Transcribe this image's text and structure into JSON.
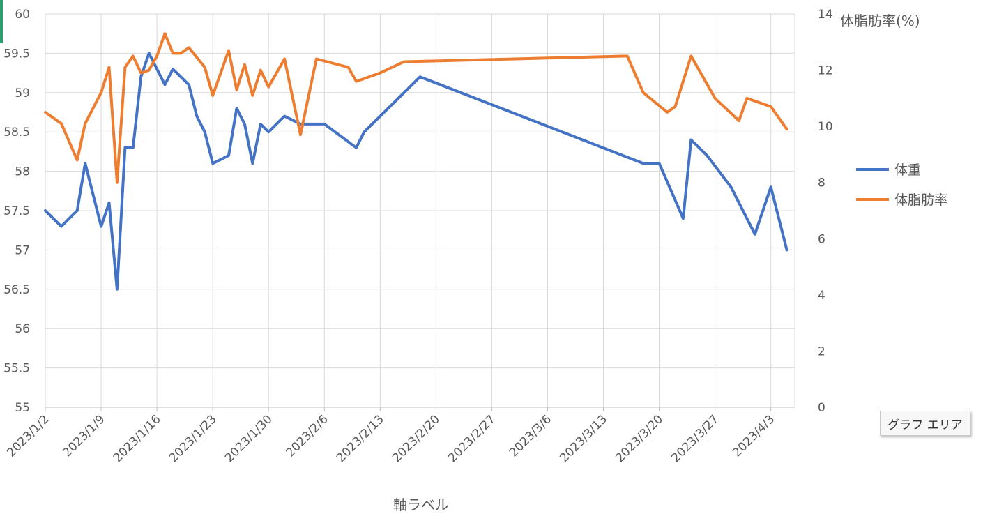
{
  "chart_data": {
    "type": "line",
    "xlabel": "軸ラベル",
    "ylabel": "",
    "y2label": "体脂肪率(%)",
    "ylim": [
      55,
      60
    ],
    "y2lim": [
      0,
      14
    ],
    "y_ticks": [
      "60",
      "59.5",
      "59",
      "58.5",
      "58",
      "57.5",
      "57",
      "56.5",
      "56",
      "55.5",
      "55"
    ],
    "y2_ticks": [
      "14",
      "12",
      "10",
      "8",
      "6",
      "4",
      "2",
      "0"
    ],
    "x_ticks": [
      "2023/1/2",
      "2023/1/9",
      "2023/1/16",
      "2023/1/23",
      "2023/1/30",
      "2023/2/6",
      "2023/2/13",
      "2023/2/20",
      "2023/2/27",
      "2023/3/6",
      "2023/3/13",
      "2023/3/20",
      "2023/3/27",
      "2023/4/3"
    ],
    "grid": true,
    "legend": "right",
    "series": [
      {
        "name": "体重",
        "axis": "left",
        "color": "#4472c4",
        "points": [
          [
            "2023/1/2",
            57.5
          ],
          [
            "2023/1/4",
            57.3
          ],
          [
            "2023/1/6",
            57.5
          ],
          [
            "2023/1/7",
            58.1
          ],
          [
            "2023/1/9",
            57.3
          ],
          [
            "2023/1/10",
            57.6
          ],
          [
            "2023/1/11",
            56.5
          ],
          [
            "2023/1/12",
            58.3
          ],
          [
            "2023/1/13",
            58.3
          ],
          [
            "2023/1/14",
            59.2
          ],
          [
            "2023/1/15",
            59.5
          ],
          [
            "2023/1/17",
            59.1
          ],
          [
            "2023/1/18",
            59.3
          ],
          [
            "2023/1/20",
            59.1
          ],
          [
            "2023/1/21",
            58.7
          ],
          [
            "2023/1/22",
            58.5
          ],
          [
            "2023/1/23",
            58.1
          ],
          [
            "2023/1/25",
            58.2
          ],
          [
            "2023/1/26",
            58.8
          ],
          [
            "2023/1/27",
            58.6
          ],
          [
            "2023/1/28",
            58.1
          ],
          [
            "2023/1/29",
            58.6
          ],
          [
            "2023/1/30",
            58.5
          ],
          [
            "2023/2/1",
            58.7
          ],
          [
            "2023/2/3",
            58.6
          ],
          [
            "2023/2/6",
            58.6
          ],
          [
            "2023/2/10",
            58.3
          ],
          [
            "2023/2/11",
            58.5
          ],
          [
            "2023/2/18",
            59.2
          ],
          [
            "2023/3/18",
            58.1
          ],
          [
            "2023/3/20",
            58.1
          ],
          [
            "2023/3/23",
            57.4
          ],
          [
            "2023/3/24",
            58.4
          ],
          [
            "2023/3/26",
            58.2
          ],
          [
            "2023/3/29",
            57.8
          ],
          [
            "2023/4/1",
            57.2
          ],
          [
            "2023/4/3",
            57.8
          ],
          [
            "2023/4/5",
            57.0
          ]
        ]
      },
      {
        "name": "体脂肪率",
        "axis": "right",
        "color": "#ed7d31",
        "points": [
          [
            "2023/1/2",
            10.5
          ],
          [
            "2023/1/4",
            10.1
          ],
          [
            "2023/1/6",
            8.8
          ],
          [
            "2023/1/7",
            10.1
          ],
          [
            "2023/1/9",
            11.2
          ],
          [
            "2023/1/10",
            12.1
          ],
          [
            "2023/1/11",
            8.0
          ],
          [
            "2023/1/12",
            12.1
          ],
          [
            "2023/1/13",
            12.5
          ],
          [
            "2023/1/14",
            11.9
          ],
          [
            "2023/1/15",
            12.0
          ],
          [
            "2023/1/16",
            12.5
          ],
          [
            "2023/1/17",
            13.3
          ],
          [
            "2023/1/18",
            12.6
          ],
          [
            "2023/1/19",
            12.6
          ],
          [
            "2023/1/20",
            12.8
          ],
          [
            "2023/1/22",
            12.1
          ],
          [
            "2023/1/23",
            11.1
          ],
          [
            "2023/1/25",
            12.7
          ],
          [
            "2023/1/26",
            11.3
          ],
          [
            "2023/1/27",
            12.2
          ],
          [
            "2023/1/28",
            11.1
          ],
          [
            "2023/1/29",
            12.0
          ],
          [
            "2023/1/30",
            11.4
          ],
          [
            "2023/2/1",
            12.4
          ],
          [
            "2023/2/3",
            9.7
          ],
          [
            "2023/2/5",
            12.4
          ],
          [
            "2023/2/9",
            12.1
          ],
          [
            "2023/2/10",
            11.6
          ],
          [
            "2023/2/13",
            11.9
          ],
          [
            "2023/2/16",
            12.3
          ],
          [
            "2023/3/16",
            12.5
          ],
          [
            "2023/3/18",
            11.2
          ],
          [
            "2023/3/21",
            10.5
          ],
          [
            "2023/3/22",
            10.7
          ],
          [
            "2023/3/24",
            12.5
          ],
          [
            "2023/3/27",
            11.0
          ],
          [
            "2023/3/30",
            10.2
          ],
          [
            "2023/3/31",
            11.0
          ],
          [
            "2023/4/3",
            10.7
          ],
          [
            "2023/4/5",
            9.9
          ]
        ]
      }
    ],
    "annotations": [
      {
        "text": "グラフ エリア",
        "type": "tooltip"
      }
    ]
  },
  "colors": {
    "grid": "#d9d9d9",
    "axis": "#bfbfbf",
    "text": "#595959",
    "accent": "#2f9e6e"
  }
}
